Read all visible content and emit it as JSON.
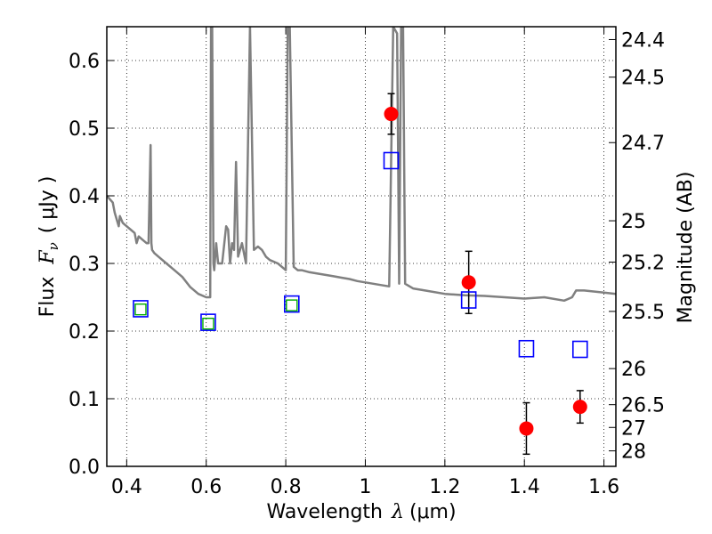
{
  "chart_data": {
    "type": "scatter",
    "title": "",
    "xlabel": {
      "prefix": "Wavelength",
      "symbol": "λ",
      "unit": "(μm)"
    },
    "ylabel": {
      "prefix": "Flux",
      "symbol": "F",
      "subscript": "ν",
      "unit": "( μJy )"
    },
    "y2label": "Magnitude (AB)",
    "xlim": [
      0.35,
      1.63
    ],
    "ylim": [
      0.0,
      0.65
    ],
    "grid": true,
    "x_ticks": [
      {
        "v": 0.4,
        "label": "0.4"
      },
      {
        "v": 0.6,
        "label": "0.6"
      },
      {
        "v": 0.8,
        "label": "0.8"
      },
      {
        "v": 1.0,
        "label": "1"
      },
      {
        "v": 1.2,
        "label": "1.2"
      },
      {
        "v": 1.4,
        "label": "1.4"
      },
      {
        "v": 1.6,
        "label": "1.6"
      }
    ],
    "y_ticks": [
      {
        "v": 0.0,
        "label": "0.0"
      },
      {
        "v": 0.1,
        "label": "0.1"
      },
      {
        "v": 0.2,
        "label": "0.2"
      },
      {
        "v": 0.3,
        "label": "0.3"
      },
      {
        "v": 0.4,
        "label": "0.4"
      },
      {
        "v": 0.5,
        "label": "0.5"
      },
      {
        "v": 0.6,
        "label": "0.6"
      }
    ],
    "y2_ticks": [
      {
        "label": "24.4"
      },
      {
        "label": "24.5"
      },
      {
        "label": "24.7"
      },
      {
        "label": "25"
      },
      {
        "label": "25.2"
      },
      {
        "label": "25.5"
      },
      {
        "label": "26"
      },
      {
        "label": "26.5"
      },
      {
        "label": "27"
      },
      {
        "label": "28"
      }
    ],
    "series": [
      {
        "kind": "line",
        "color": "#808080",
        "x": [
          0.35,
          0.365,
          0.37,
          0.38,
          0.383,
          0.39,
          0.4,
          0.41,
          0.42,
          0.425,
          0.43,
          0.44,
          0.45,
          0.455,
          0.46,
          0.462,
          0.464,
          0.47,
          0.48,
          0.5,
          0.52,
          0.54,
          0.56,
          0.58,
          0.6,
          0.61,
          0.612,
          0.615,
          0.618,
          0.62,
          0.625,
          0.63,
          0.64,
          0.65,
          0.655,
          0.66,
          0.665,
          0.67,
          0.675,
          0.68,
          0.69,
          0.7,
          0.71,
          0.72,
          0.73,
          0.74,
          0.75,
          0.76,
          0.78,
          0.8,
          0.805,
          0.81,
          0.82,
          0.83,
          0.84,
          0.86,
          0.88,
          0.9,
          0.92,
          0.94,
          0.96,
          0.98,
          1.0,
          1.02,
          1.04,
          1.06,
          1.07,
          1.08,
          1.085,
          1.09,
          1.095,
          1.1,
          1.12,
          1.15,
          1.2,
          1.25,
          1.3,
          1.35,
          1.4,
          1.45,
          1.5,
          1.52,
          1.53,
          1.55,
          1.6,
          1.63
        ],
        "y": [
          0.4,
          0.39,
          0.375,
          0.355,
          0.37,
          0.36,
          0.355,
          0.35,
          0.345,
          0.33,
          0.34,
          0.335,
          0.33,
          0.33,
          0.475,
          0.33,
          0.32,
          0.315,
          0.31,
          0.3,
          0.29,
          0.28,
          0.265,
          0.255,
          0.25,
          0.25,
          0.65,
          0.65,
          0.3,
          0.29,
          0.33,
          0.3,
          0.3,
          0.355,
          0.35,
          0.3,
          0.33,
          0.32,
          0.45,
          0.31,
          0.33,
          0.3,
          0.65,
          0.32,
          0.325,
          0.32,
          0.31,
          0.305,
          0.3,
          0.29,
          0.65,
          0.65,
          0.295,
          0.29,
          0.29,
          0.287,
          0.285,
          0.283,
          0.281,
          0.279,
          0.277,
          0.274,
          0.272,
          0.27,
          0.268,
          0.266,
          0.65,
          0.64,
          0.27,
          0.65,
          0.65,
          0.27,
          0.263,
          0.26,
          0.255,
          0.253,
          0.252,
          0.25,
          0.248,
          0.25,
          0.245,
          0.25,
          0.26,
          0.26,
          0.257,
          0.255
        ]
      },
      {
        "name": "",
        "kind": "marker-circle",
        "color": "#ff0000",
        "points": [
          {
            "x": 1.065,
            "y": 0.521,
            "err": 0.03
          },
          {
            "x": 1.26,
            "y": 0.272,
            "err": 0.046
          },
          {
            "x": 1.405,
            "y": 0.056,
            "err": 0.038
          },
          {
            "x": 1.54,
            "y": 0.088,
            "err": 0.024
          }
        ]
      },
      {
        "name": "",
        "kind": "marker-square-open",
        "color": "#0000ff",
        "points": [
          {
            "x": 0.435,
            "y": 0.233
          },
          {
            "x": 0.605,
            "y": 0.213
          },
          {
            "x": 0.815,
            "y": 0.24
          },
          {
            "x": 1.065,
            "y": 0.452
          },
          {
            "x": 1.26,
            "y": 0.246
          },
          {
            "x": 1.405,
            "y": 0.174
          },
          {
            "x": 1.54,
            "y": 0.173
          }
        ]
      },
      {
        "name": "",
        "kind": "marker-square-open-small",
        "color": "#00aa00",
        "points": [
          {
            "x": 0.435,
            "y": 0.232
          },
          {
            "x": 0.605,
            "y": 0.211
          },
          {
            "x": 0.815,
            "y": 0.238
          }
        ]
      }
    ]
  }
}
